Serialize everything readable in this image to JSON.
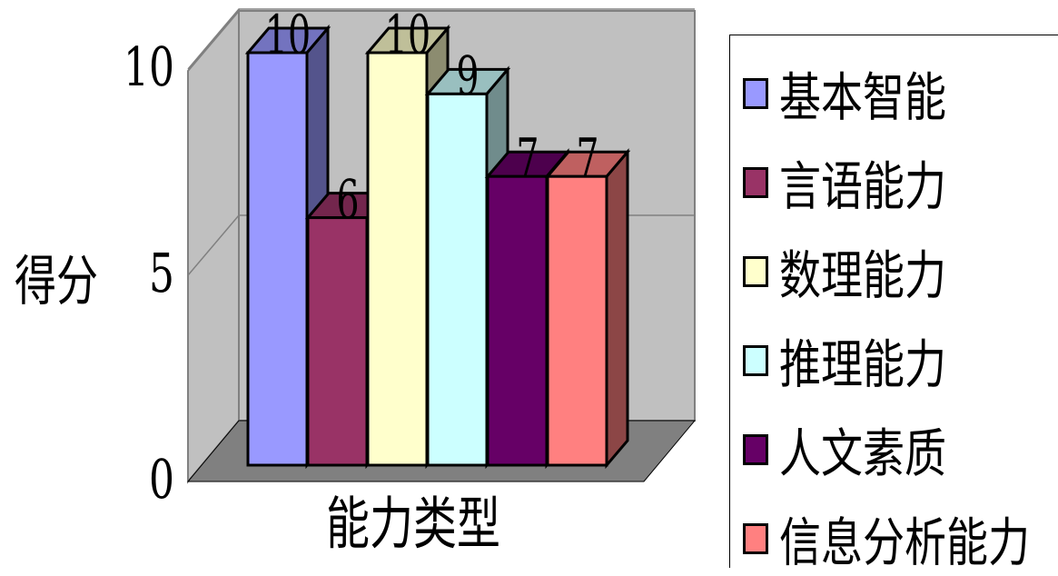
{
  "chart_data": {
    "type": "bar",
    "categories": [
      "基本智能",
      "言语能力",
      "数理能力",
      "推理能力",
      "人文素质",
      "信息分析能力"
    ],
    "values": [
      10,
      6,
      10,
      9,
      7,
      7
    ],
    "colors": [
      "#9999FF",
      "#993366",
      "#FFFFCC",
      "#CCFFFF",
      "#660066",
      "#FF8080"
    ],
    "title": "",
    "xlabel": "能力类型",
    "ylabel": "得分",
    "ylim": [
      0,
      10
    ],
    "yticks": [
      "0",
      "5",
      "10"
    ],
    "style": "3d-column",
    "grid": true,
    "legend_position": "right"
  }
}
